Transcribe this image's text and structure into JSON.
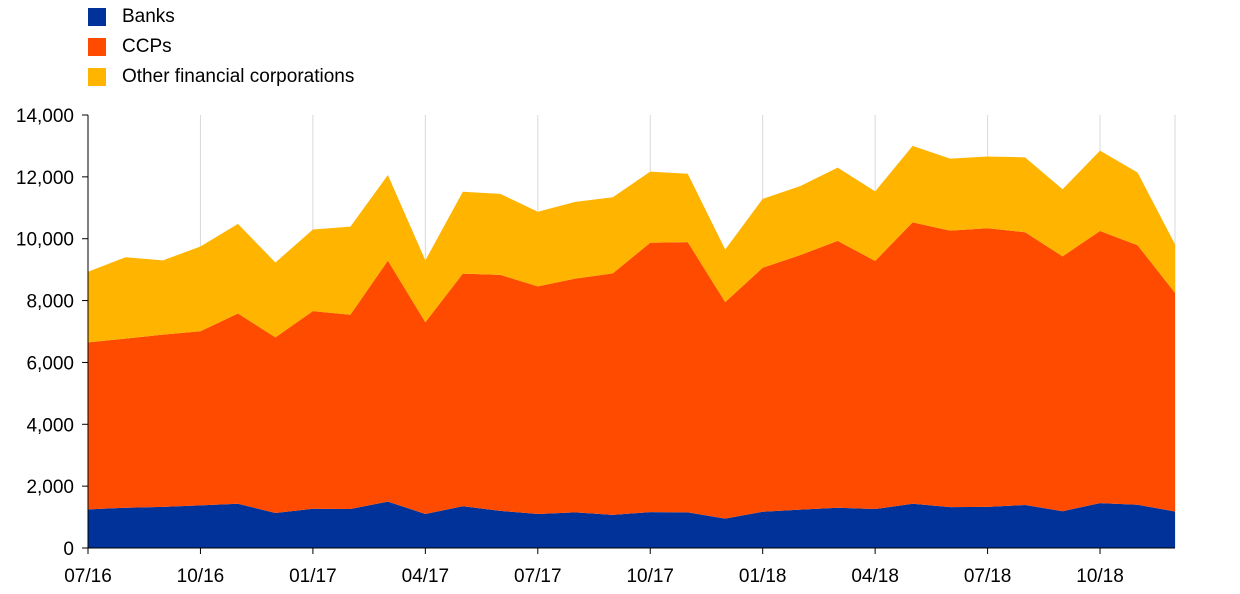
{
  "chart_data": {
    "type": "area",
    "stacked": true,
    "title": "",
    "xlabel": "",
    "ylabel": "",
    "ylim": [
      0,
      14000
    ],
    "yticks": [
      0,
      2000,
      4000,
      6000,
      8000,
      10000,
      12000,
      14000
    ],
    "ytick_labels": [
      "0",
      "2,000",
      "4,000",
      "6,000",
      "8,000",
      "10,000",
      "12,000",
      "14,000"
    ],
    "x": [
      "07/16",
      "08/16",
      "09/16",
      "10/16",
      "11/16",
      "12/16",
      "01/17",
      "02/17",
      "03/17",
      "04/17",
      "05/17",
      "06/17",
      "07/17",
      "08/17",
      "09/17",
      "10/17",
      "11/17",
      "12/17",
      "01/18",
      "02/18",
      "03/18",
      "04/18",
      "05/18",
      "06/18",
      "07/18",
      "08/18",
      "09/18",
      "10/18",
      "11/18",
      "12/18"
    ],
    "xtick_labels": [
      "07/16",
      "10/16",
      "01/17",
      "04/17",
      "07/17",
      "10/17",
      "01/18",
      "04/18",
      "07/18",
      "10/18"
    ],
    "grid": "vertical",
    "legend_position": "top-left",
    "series": [
      {
        "name": "Banks",
        "color": "#003299",
        "values": [
          1250,
          1300,
          1330,
          1380,
          1430,
          1130,
          1270,
          1260,
          1500,
          1100,
          1350,
          1200,
          1100,
          1150,
          1070,
          1160,
          1150,
          950,
          1170,
          1240,
          1300,
          1260,
          1430,
          1320,
          1330,
          1390,
          1190,
          1450,
          1400,
          1180
        ]
      },
      {
        "name": "CCPs",
        "color": "#FF4B00",
        "values": [
          5400,
          5470,
          5570,
          5630,
          6150,
          5680,
          6390,
          6280,
          7790,
          6200,
          7520,
          7630,
          7360,
          7560,
          7810,
          8710,
          8740,
          7000,
          7890,
          8230,
          8630,
          8020,
          9100,
          8940,
          9010,
          8820,
          8240,
          8800,
          8390,
          7070
        ]
      },
      {
        "name": "Other financial corporations",
        "color": "#FFB400",
        "values": [
          2280,
          2630,
          2400,
          2740,
          2900,
          2420,
          2640,
          2850,
          2770,
          2000,
          2650,
          2620,
          2410,
          2480,
          2460,
          2300,
          2210,
          1700,
          2230,
          2230,
          2370,
          2250,
          2470,
          2330,
          2320,
          2420,
          2170,
          2600,
          2350,
          1570
        ]
      }
    ]
  }
}
